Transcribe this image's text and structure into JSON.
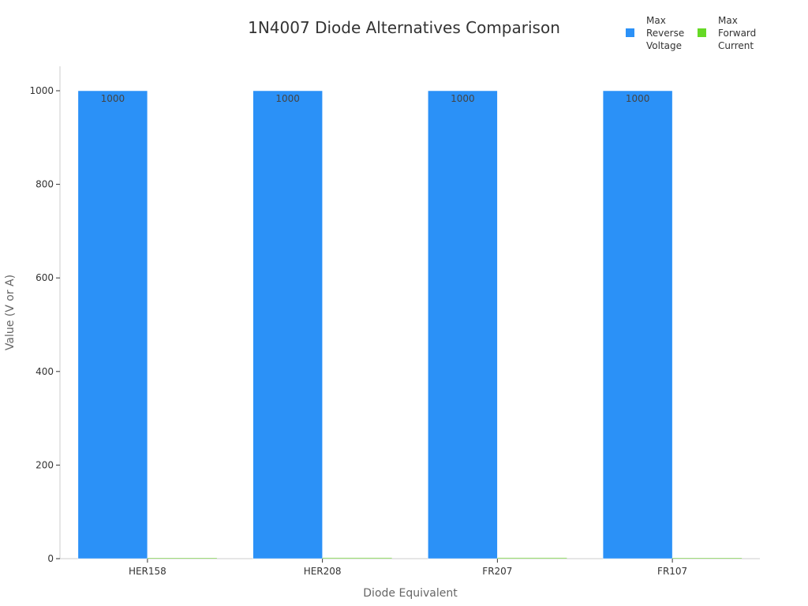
{
  "chart_data": {
    "type": "bar",
    "title": "1N4007 Diode Alternatives Comparison",
    "xlabel": "Diode Equivalent",
    "ylabel": "Value (V or A)",
    "categories": [
      "HER158",
      "HER208",
      "FR207",
      "FR107"
    ],
    "series": [
      {
        "name": "Max Reverse Voltage",
        "name_lines": [
          "Max",
          "Reverse",
          "Voltage"
        ],
        "values": [
          1000,
          1000,
          1000,
          1000
        ],
        "color": "#2b91f7"
      },
      {
        "name": "Max Forward Current",
        "name_lines": [
          "Max",
          "Forward",
          "Current"
        ],
        "values": [
          1.5,
          2,
          2,
          1
        ],
        "color": "#66d926"
      }
    ],
    "ylim": [
      0,
      1050
    ],
    "yticks": [
      0,
      200,
      400,
      600,
      800,
      1000
    ],
    "data_labels": [
      "1000",
      "1000",
      "1000",
      "1000"
    ],
    "grid": false,
    "legend": "top-right"
  }
}
